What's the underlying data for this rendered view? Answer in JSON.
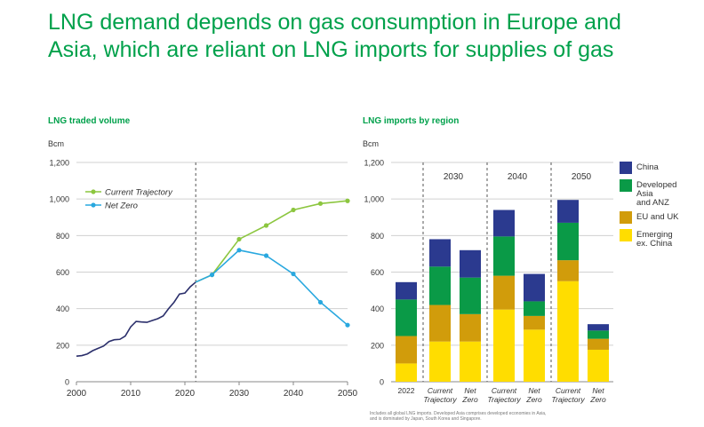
{
  "title_lines": [
    "LNG demand depends on gas consumption in Europe and",
    "Asia, which are reliant on LNG imports for supplies of gas"
  ],
  "footnote_lines": [
    "Includes all global LNG imports. Developed Asia comprises developed economies in Asia,",
    "and is dominated by Japan, South Korea and Singapore."
  ],
  "colors": {
    "title": "#00a14b",
    "history": "#2b2f6b",
    "current_trajectory": "#8cc63f",
    "net_zero": "#29a8df",
    "china": "#2b3a8f",
    "developed_asia_anz": "#0a9a47",
    "eu_uk": "#d19c0b",
    "emerging": "#ffdd00",
    "axis": "#888888",
    "grid": "#d0d0d0"
  },
  "chart_data": [
    {
      "type": "line",
      "title": "LNG traded volume",
      "ylabel": "Bcm",
      "xlim": [
        2000,
        2050
      ],
      "ylim": [
        0,
        1200
      ],
      "x_ticks": [
        "2000",
        "2010",
        "2020",
        "2030",
        "2040",
        "2050"
      ],
      "y_ticks": [
        "0",
        "200",
        "400",
        "600",
        "800",
        "1,000",
        "1,200"
      ],
      "grid": true,
      "divider_x": 2022,
      "legend_position": "top-left",
      "legend": [
        "Current Trajectory",
        "Net Zero"
      ],
      "series": [
        {
          "key": "history",
          "x": [
            2000,
            2001,
            2002,
            2003,
            2004,
            2005,
            2006,
            2007,
            2008,
            2009,
            2010,
            2011,
            2012,
            2013,
            2014,
            2015,
            2016,
            2017,
            2018,
            2019,
            2020,
            2021,
            2022
          ],
          "y": [
            140,
            143,
            152,
            170,
            183,
            195,
            220,
            230,
            232,
            250,
            300,
            330,
            327,
            325,
            335,
            345,
            360,
            400,
            435,
            480,
            485,
            520,
            545
          ]
        },
        {
          "name": "Current Trajectory",
          "key": "current",
          "x": [
            2022,
            2025,
            2030,
            2035,
            2040,
            2045,
            2050
          ],
          "y": [
            545,
            585,
            780,
            855,
            940,
            975,
            990
          ]
        },
        {
          "name": "Net Zero",
          "key": "netzero",
          "x": [
            2022,
            2025,
            2030,
            2035,
            2040,
            2045,
            2050
          ],
          "y": [
            545,
            585,
            720,
            690,
            590,
            435,
            310
          ]
        }
      ]
    },
    {
      "type": "bar",
      "stacked": true,
      "title": "LNG imports by region",
      "ylabel": "Bcm",
      "ylim": [
        0,
        1200
      ],
      "y_ticks": [
        "0",
        "200",
        "400",
        "600",
        "800",
        "1,000",
        "1,200"
      ],
      "grid": true,
      "groups": [
        "2030",
        "2040",
        "2050"
      ],
      "categories": [
        "2022",
        "Current\nTrajectory",
        "Net\nZero",
        "Current\nTrajectory",
        "Net\nZero",
        "Current\nTrajectory",
        "Net\nZero"
      ],
      "category_group": [
        null,
        0,
        0,
        1,
        1,
        2,
        2
      ],
      "legend_position": "right",
      "series": [
        {
          "name": "Emerging\nex. China",
          "key": "emerging",
          "values": [
            100,
            220,
            220,
            395,
            285,
            550,
            175
          ]
        },
        {
          "name": "EU and UK",
          "key": "eu_uk",
          "values": [
            150,
            200,
            150,
            185,
            75,
            115,
            60
          ]
        },
        {
          "name": "Developed\nAsia\nand ANZ",
          "key": "developed_asia_anz",
          "values": [
            200,
            210,
            200,
            215,
            80,
            205,
            45
          ]
        },
        {
          "name": "China",
          "key": "china",
          "values": [
            95,
            150,
            150,
            145,
            150,
            125,
            35
          ]
        }
      ],
      "legend_order": [
        "China",
        "Developed\nAsia\nand ANZ",
        "EU and UK",
        "Emerging\nex. China"
      ]
    }
  ]
}
